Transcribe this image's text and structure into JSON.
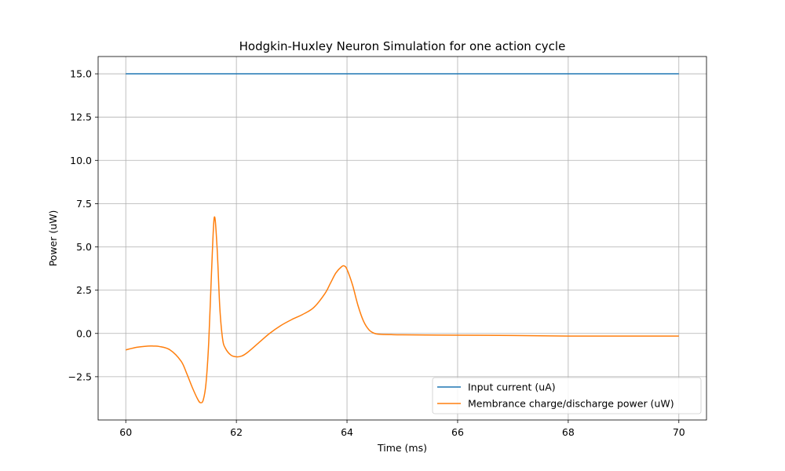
{
  "chart_data": {
    "type": "line",
    "title": "Hodgkin-Huxley Neuron Simulation for one action cycle",
    "xlabel": "Time (ms)",
    "ylabel": "Power (uW)",
    "xlim": [
      59.5,
      70.5
    ],
    "ylim": [
      -5.0,
      16.0
    ],
    "xticks": [
      60,
      62,
      64,
      66,
      68,
      70
    ],
    "xtick_labels": [
      "60",
      "62",
      "64",
      "66",
      "68",
      "70"
    ],
    "yticks": [
      -2.5,
      0.0,
      2.5,
      5.0,
      7.5,
      10.0,
      12.5,
      15.0
    ],
    "ytick_labels": [
      "−2.5",
      "0.0",
      "2.5",
      "5.0",
      "7.5",
      "10.0",
      "12.5",
      "15.0"
    ],
    "grid": true,
    "legend_position": "lower-right",
    "series": [
      {
        "name": "Input current (uA)",
        "color": "#1f77b4",
        "x": [
          60,
          70
        ],
        "y": [
          15,
          15
        ]
      },
      {
        "name": "Membrance charge/discharge power (uW)",
        "color": "#ff7f0e",
        "x": [
          60.0,
          60.2,
          60.4,
          60.5,
          60.6,
          60.8,
          61.0,
          61.1,
          61.2,
          61.3,
          61.35,
          61.4,
          61.45,
          61.5,
          61.55,
          61.6,
          61.65,
          61.7,
          61.75,
          61.8,
          61.9,
          62.0,
          62.1,
          62.2,
          62.4,
          62.6,
          62.8,
          63.0,
          63.2,
          63.4,
          63.6,
          63.7,
          63.8,
          63.9,
          63.95,
          64.0,
          64.1,
          64.2,
          64.3,
          64.4,
          64.5,
          64.6,
          64.8,
          65.0,
          66.0,
          67.0,
          68.0,
          69.0,
          70.0
        ],
        "y": [
          -0.95,
          -0.8,
          -0.73,
          -0.73,
          -0.75,
          -0.95,
          -1.6,
          -2.3,
          -3.1,
          -3.8,
          -4.0,
          -3.85,
          -2.9,
          -0.5,
          3.5,
          6.7,
          5.0,
          1.5,
          -0.3,
          -0.85,
          -1.25,
          -1.35,
          -1.3,
          -1.1,
          -0.55,
          0.0,
          0.45,
          0.8,
          1.1,
          1.5,
          2.3,
          2.9,
          3.5,
          3.85,
          3.9,
          3.7,
          2.8,
          1.6,
          0.7,
          0.2,
          0.0,
          -0.05,
          -0.07,
          -0.08,
          -0.1,
          -0.12,
          -0.15,
          -0.15,
          -0.15
        ]
      }
    ]
  }
}
